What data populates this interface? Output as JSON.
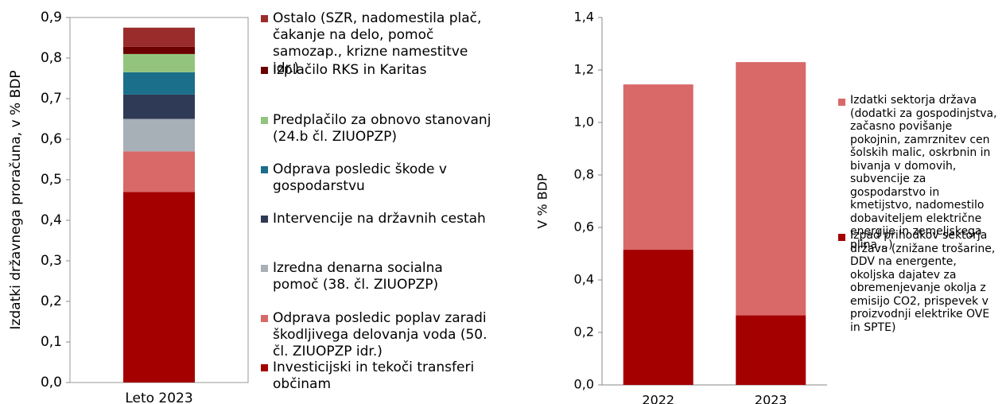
{
  "chart_data": [
    {
      "type": "stacked_bar",
      "ylabel": "Izdatki državnega proračuna,  v % BDP",
      "categories": [
        "Leto 2023"
      ],
      "ylim": [
        0,
        0.9
      ],
      "yticks": [
        {
          "value": 0,
          "label": "0,0"
        },
        {
          "value": 0.1,
          "label": "0,1"
        },
        {
          "value": 0.2,
          "label": "0,2"
        },
        {
          "value": 0.3,
          "label": "0,3"
        },
        {
          "value": 0.4,
          "label": "0,4"
        },
        {
          "value": 0.5,
          "label": "0,5"
        },
        {
          "value": 0.6,
          "label": "0,6"
        },
        {
          "value": 0.7,
          "label": "0,7"
        },
        {
          "value": 0.8,
          "label": "0,8"
        },
        {
          "value": 0.9,
          "label": "0,9"
        }
      ],
      "series": [
        {
          "name": "Investicijski in tekoči transferi občinam",
          "color": "#a50000",
          "values": [
            0.47
          ]
        },
        {
          "name": "Odprava posledic poplav zaradi škodljivega delovanja voda (50. čl. ZIUOPZP idr.)",
          "color": "#d96868",
          "values": [
            0.1
          ]
        },
        {
          "name": "Izredna denarna socialna pomoč (38. čl. ZIUOPZP)",
          "color": "#a7afb7",
          "values": [
            0.08
          ]
        },
        {
          "name": "Intervencije na državnih cestah",
          "color": "#2f3a57",
          "values": [
            0.06
          ]
        },
        {
          "name": "Odprava posledic škode v gospodarstvu",
          "color": "#1b6f8a",
          "values": [
            0.055
          ]
        },
        {
          "name": "Predplačilo za obnovo stanovanj (24.b čl. ZIUOPZP)",
          "color": "#93c47d",
          "values": [
            0.045
          ]
        },
        {
          "name": "Izplačilo RKS in Karitas",
          "color": "#6b0000",
          "values": [
            0.018
          ]
        },
        {
          "name": "Ostalo (SZR, nadomestila plač, čakanje na delo, pomoč samozap., krizne namestitve idr.)",
          "color": "#9b2c2c",
          "values": [
            0.047
          ]
        }
      ]
    },
    {
      "type": "stacked_bar",
      "ylabel": "V % BDP",
      "categories": [
        "2022",
        "2023"
      ],
      "ylim": [
        0,
        1.4
      ],
      "yticks": [
        {
          "value": 0,
          "label": "0,0"
        },
        {
          "value": 0.2,
          "label": "0,2"
        },
        {
          "value": 0.4,
          "label": "0,4"
        },
        {
          "value": 0.6,
          "label": "0,6"
        },
        {
          "value": 0.8,
          "label": "0,8"
        },
        {
          "value": 1.0,
          "label": "1,0"
        },
        {
          "value": 1.2,
          "label": "1,2"
        },
        {
          "value": 1.4,
          "label": "1,4"
        }
      ],
      "series": [
        {
          "name": "Izpad prihodkov sektorja država (znižane trošarine, DDV na energente, okoljska dajatev za obremenjevanje okolja z emisijo CO2, prispevek v proizvodnji elektrike OVE in SPTE)",
          "color": "#a50000",
          "values": [
            0.515,
            0.265
          ]
        },
        {
          "name": "Izdatki sektorja država (dodatki za gospodinjstva, začasno povišanje pokojnin, zamrznitev cen šolskih malic, oskrbnin in bivanja v domovih, subvencije za gospodarstvo in kmetijstvo, nadomestilo dobaviteljem električne energije in zemeljskega plina…)",
          "color": "#d96868",
          "values": [
            0.63,
            0.965
          ]
        }
      ]
    }
  ]
}
